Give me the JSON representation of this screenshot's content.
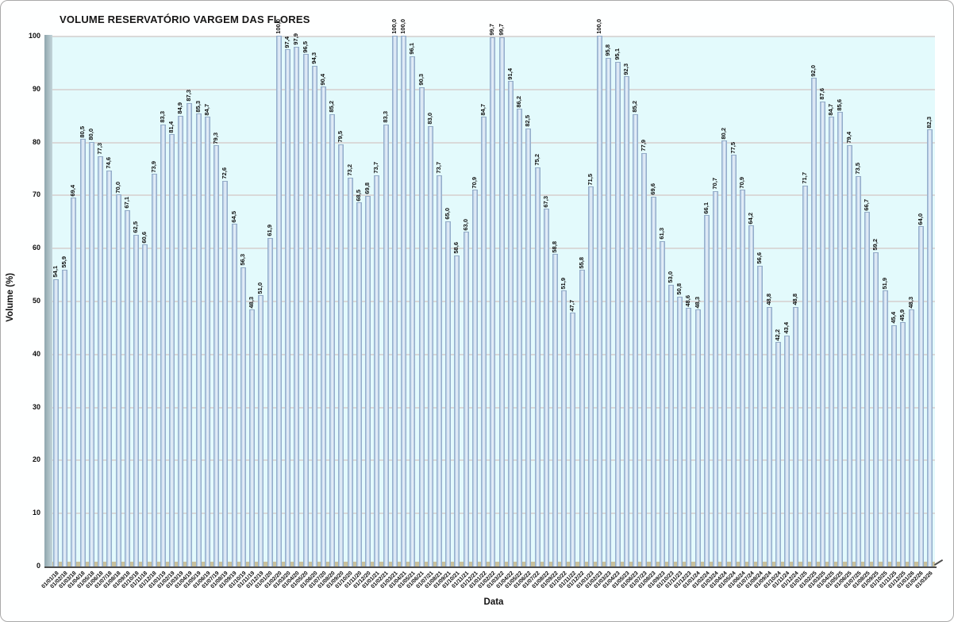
{
  "chart_data": {
    "type": "bar",
    "title": "VOLUME RESERVATÓRIO VARGEM DAS FLORES",
    "xlabel": "Data",
    "ylabel": "Volume (%)",
    "ylim": [
      0,
      100
    ],
    "y_ticks": [
      0,
      10,
      20,
      30,
      40,
      50,
      60,
      70,
      80,
      90,
      100
    ],
    "grid": true,
    "legend": false,
    "decimal_separator": ",",
    "bar_value_labels_rotated": true,
    "categories": [
      "01/01/18",
      "01/02/18",
      "01/03/18",
      "01/04/18",
      "01/05/18",
      "01/06/18",
      "01/07/18",
      "01/08/18",
      "01/09/18",
      "01/10/18",
      "01/11/18",
      "01/12/18",
      "01/01/19",
      "01/02/19",
      "01/03/19",
      "01/04/19",
      "01/05/19",
      "01/06/19",
      "01/07/19",
      "01/08/19",
      "01/09/19",
      "01/10/19",
      "01/11/19",
      "01/12/19",
      "01/01/20",
      "01/02/20",
      "01/03/20",
      "01/04/20",
      "01/05/20",
      "01/06/20",
      "01/07/20",
      "01/08/20",
      "01/09/20",
      "01/10/20",
      "01/11/20",
      "01/12/20",
      "01/01/21",
      "01/02/21",
      "01/03/21",
      "01/04/21",
      "01/05/21",
      "01/06/21",
      "01/07/21",
      "01/08/21",
      "01/09/21",
      "01/10/21",
      "01/11/21",
      "01/12/21",
      "01/01/22",
      "01/02/22",
      "01/03/22",
      "01/04/22",
      "01/05/22",
      "01/06/22",
      "01/07/22",
      "01/08/22",
      "01/09/22",
      "01/10/22",
      "01/11/22",
      "01/12/22",
      "01/01/23",
      "01/02/23",
      "01/03/23",
      "01/04/23",
      "01/05/23",
      "01/06/23",
      "01/07/23",
      "01/08/23",
      "01/09/23",
      "01/10/23",
      "01/11/23",
      "01/12/23",
      "01/01/24",
      "01/02/24",
      "01/03/24",
      "01/04/24",
      "01/05/24",
      "01/06/24",
      "01/07/24",
      "01/08/24",
      "01/09/24",
      "01/10/24",
      "01/11/24",
      "01/12/24",
      "01/01/25",
      "01/02/25",
      "01/03/25",
      "01/04/25",
      "01/05/25",
      "01/06/25",
      "01/07/25",
      "01/08/25",
      "01/09/25",
      "01/10/25",
      "01/11/25",
      "01/12/25",
      "01/01/26",
      "01/02/26",
      "01/03/26"
    ],
    "values": [
      54.1,
      55.9,
      69.4,
      80.5,
      80.0,
      77.3,
      74.6,
      70.0,
      67.1,
      62.5,
      60.6,
      73.9,
      83.3,
      81.4,
      84.9,
      87.3,
      85.3,
      84.7,
      79.3,
      72.6,
      64.5,
      56.3,
      48.3,
      51.0,
      61.9,
      100.0,
      97.4,
      97.9,
      96.5,
      94.3,
      90.4,
      85.2,
      79.5,
      73.2,
      68.5,
      69.8,
      73.7,
      83.3,
      100.0,
      100.0,
      96.1,
      90.3,
      83.0,
      73.7,
      65.0,
      58.6,
      63.0,
      70.9,
      84.7,
      99.7,
      99.7,
      91.4,
      86.2,
      82.5,
      75.2,
      67.3,
      58.8,
      51.9,
      47.7,
      55.8,
      71.5,
      100.0,
      95.8,
      95.1,
      92.3,
      85.2,
      77.9,
      69.6,
      61.3,
      53.0,
      50.8,
      48.6,
      48.3,
      66.1,
      70.7,
      80.2,
      77.5,
      70.9,
      64.2,
      56.6,
      48.8,
      42.2,
      43.4,
      48.8,
      71.7,
      92.0,
      87.6,
      84.7,
      85.6,
      79.4,
      73.5,
      66.7,
      59.2,
      51.9,
      45.4,
      45.9,
      48.3,
      64.0,
      82.3
    ],
    "colors": {
      "plot_background": "#e3fafc",
      "bar_light": "#edf4fb",
      "bar_dark": "#7e99ba",
      "gridline": "#d9d9d9",
      "wall": "#9fb4ba",
      "floor": "#c9c19b",
      "axis_line": "#4d4d4d",
      "text": "#111111"
    }
  }
}
